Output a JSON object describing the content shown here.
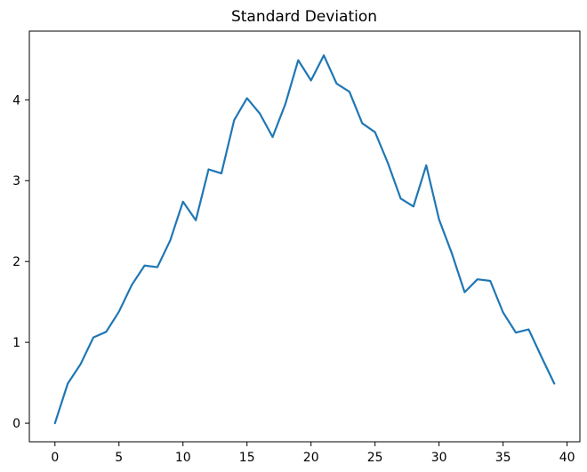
{
  "chart_data": {
    "type": "line",
    "title": "Standard Deviation",
    "xlabel": "",
    "ylabel": "",
    "xlim": [
      -2,
      41
    ],
    "ylim": [
      -0.23,
      4.85
    ],
    "xticks": [
      0,
      5,
      10,
      15,
      20,
      25,
      30,
      35,
      40
    ],
    "xtick_labels": [
      "0",
      "5",
      "10",
      "15",
      "20",
      "25",
      "30",
      "35",
      "40"
    ],
    "yticks": [
      0,
      1,
      2,
      3,
      4
    ],
    "ytick_labels": [
      "0",
      "1",
      "2",
      "3",
      "4"
    ],
    "grid": false,
    "legend": "none",
    "line_color": "#1f77b4",
    "series": [
      {
        "x": [
          0,
          1,
          2,
          3,
          4,
          5,
          6,
          7,
          8,
          9,
          10,
          11,
          12,
          13,
          14,
          15,
          16,
          17,
          18,
          19,
          20,
          21,
          22,
          23,
          24,
          25,
          26,
          27,
          28,
          29,
          30,
          31,
          32,
          33,
          34,
          35,
          36,
          37,
          38,
          39
        ],
        "values": [
          0.0,
          0.49,
          0.73,
          1.06,
          1.13,
          1.38,
          1.71,
          1.95,
          1.93,
          2.26,
          2.74,
          2.51,
          3.14,
          3.09,
          3.75,
          4.02,
          3.83,
          3.54,
          3.95,
          4.49,
          4.24,
          4.55,
          4.2,
          4.1,
          3.71,
          3.6,
          3.22,
          2.78,
          2.68,
          3.19,
          2.52,
          2.1,
          1.62,
          1.78,
          1.76,
          1.37,
          1.12,
          1.16,
          0.82,
          0.49
        ]
      }
    ]
  }
}
